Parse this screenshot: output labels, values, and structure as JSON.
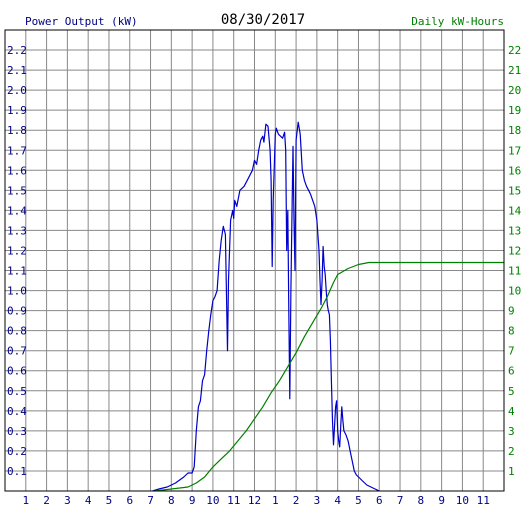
{
  "chart_data": {
    "type": "line",
    "date": "08/30/2017",
    "left_axis_title": "Power Output (kW)",
    "right_axis_title": "Daily kW-Hours",
    "x_tick_labels": [
      "1",
      "2",
      "3",
      "4",
      "5",
      "6",
      "7",
      "8",
      "9",
      "10",
      "11",
      "12",
      "1",
      "2",
      "3",
      "4",
      "5",
      "6",
      "7",
      "8",
      "9",
      "10",
      "11"
    ],
    "left_ticks": [
      "0.1",
      "0.2",
      "0.3",
      "0.4",
      "0.5",
      "0.6",
      "0.7",
      "0.8",
      "0.9",
      "1.0",
      "1.1",
      "1.2",
      "1.3",
      "1.4",
      "1.5",
      "1.6",
      "1.7",
      "1.8",
      "1.9",
      "2.0",
      "2.1",
      "2.2"
    ],
    "right_ticks": [
      "1",
      "2",
      "3",
      "4",
      "5",
      "6",
      "7",
      "8",
      "9",
      "10",
      "11",
      "12",
      "13",
      "14",
      "15",
      "16",
      "17",
      "18",
      "19",
      "20",
      "21",
      "22"
    ],
    "ylim_left": [
      0,
      2.3
    ],
    "ylim_right": [
      0,
      23
    ],
    "xlim_hours": [
      0,
      24
    ],
    "grid": true,
    "colors": {
      "power": "#0000cc",
      "energy": "#008000",
      "left_axis": "#000080",
      "right_axis": "#008000",
      "grid": "#888888"
    },
    "series": [
      {
        "axis": "left",
        "color": "#0000cc",
        "points": [
          [
            7.1,
            0.0
          ],
          [
            7.4,
            0.01
          ],
          [
            7.8,
            0.02
          ],
          [
            8.2,
            0.04
          ],
          [
            8.6,
            0.07
          ],
          [
            8.8,
            0.09
          ],
          [
            9.0,
            0.09
          ],
          [
            9.1,
            0.12
          ],
          [
            9.2,
            0.3
          ],
          [
            9.3,
            0.42
          ],
          [
            9.4,
            0.45
          ],
          [
            9.5,
            0.55
          ],
          [
            9.6,
            0.58
          ],
          [
            9.7,
            0.7
          ],
          [
            9.8,
            0.8
          ],
          [
            9.9,
            0.88
          ],
          [
            10.0,
            0.95
          ],
          [
            10.1,
            0.97
          ],
          [
            10.2,
            1.0
          ],
          [
            10.3,
            1.15
          ],
          [
            10.4,
            1.25
          ],
          [
            10.5,
            1.32
          ],
          [
            10.6,
            1.28
          ],
          [
            10.65,
            1.0
          ],
          [
            10.7,
            0.7
          ],
          [
            10.75,
            1.05
          ],
          [
            10.85,
            1.35
          ],
          [
            10.95,
            1.4
          ],
          [
            11.0,
            1.36
          ],
          [
            11.05,
            1.45
          ],
          [
            11.15,
            1.42
          ],
          [
            11.3,
            1.5
          ],
          [
            11.5,
            1.52
          ],
          [
            11.7,
            1.56
          ],
          [
            11.9,
            1.6
          ],
          [
            12.0,
            1.65
          ],
          [
            12.1,
            1.63
          ],
          [
            12.2,
            1.7
          ],
          [
            12.3,
            1.75
          ],
          [
            12.4,
            1.77
          ],
          [
            12.45,
            1.74
          ],
          [
            12.55,
            1.83
          ],
          [
            12.65,
            1.82
          ],
          [
            12.75,
            1.7
          ],
          [
            12.8,
            1.55
          ],
          [
            12.85,
            1.12
          ],
          [
            12.9,
            1.45
          ],
          [
            13.0,
            1.78
          ],
          [
            13.05,
            1.81
          ],
          [
            13.15,
            1.78
          ],
          [
            13.25,
            1.77
          ],
          [
            13.35,
            1.76
          ],
          [
            13.45,
            1.79
          ],
          [
            13.5,
            1.7
          ],
          [
            13.55,
            1.2
          ],
          [
            13.6,
            1.4
          ],
          [
            13.65,
            0.9
          ],
          [
            13.7,
            0.46
          ],
          [
            13.75,
            1.0
          ],
          [
            13.8,
            1.35
          ],
          [
            13.85,
            1.72
          ],
          [
            13.9,
            1.35
          ],
          [
            13.95,
            1.1
          ],
          [
            14.0,
            1.75
          ],
          [
            14.1,
            1.84
          ],
          [
            14.2,
            1.78
          ],
          [
            14.3,
            1.6
          ],
          [
            14.4,
            1.55
          ],
          [
            14.5,
            1.52
          ],
          [
            14.6,
            1.5
          ],
          [
            14.7,
            1.48
          ],
          [
            14.8,
            1.45
          ],
          [
            14.9,
            1.42
          ],
          [
            15.0,
            1.35
          ],
          [
            15.1,
            1.2
          ],
          [
            15.15,
            1.05
          ],
          [
            15.2,
            0.93
          ],
          [
            15.25,
            1.05
          ],
          [
            15.3,
            1.22
          ],
          [
            15.35,
            1.12
          ],
          [
            15.4,
            1.08
          ],
          [
            15.45,
            1.0
          ],
          [
            15.5,
            0.93
          ],
          [
            15.55,
            0.9
          ],
          [
            15.6,
            0.88
          ],
          [
            15.65,
            0.75
          ],
          [
            15.7,
            0.55
          ],
          [
            15.75,
            0.35
          ],
          [
            15.8,
            0.23
          ],
          [
            15.85,
            0.32
          ],
          [
            15.9,
            0.42
          ],
          [
            15.95,
            0.45
          ],
          [
            16.0,
            0.3
          ],
          [
            16.05,
            0.25
          ],
          [
            16.1,
            0.22
          ],
          [
            16.15,
            0.33
          ],
          [
            16.2,
            0.42
          ],
          [
            16.25,
            0.35
          ],
          [
            16.3,
            0.3
          ],
          [
            16.4,
            0.28
          ],
          [
            16.5,
            0.25
          ],
          [
            16.6,
            0.2
          ],
          [
            16.7,
            0.15
          ],
          [
            16.8,
            0.1
          ],
          [
            16.9,
            0.08
          ],
          [
            17.0,
            0.07
          ],
          [
            17.2,
            0.05
          ],
          [
            17.4,
            0.03
          ],
          [
            17.6,
            0.02
          ],
          [
            17.8,
            0.01
          ],
          [
            18.0,
            0.0
          ]
        ]
      },
      {
        "axis": "right",
        "color": "#008000",
        "points": [
          [
            7.2,
            0.0
          ],
          [
            8.0,
            0.1
          ],
          [
            8.8,
            0.2
          ],
          [
            9.2,
            0.4
          ],
          [
            9.6,
            0.7
          ],
          [
            10.0,
            1.2
          ],
          [
            10.4,
            1.6
          ],
          [
            10.8,
            2.0
          ],
          [
            11.2,
            2.5
          ],
          [
            11.6,
            3.0
          ],
          [
            12.0,
            3.6
          ],
          [
            12.4,
            4.2
          ],
          [
            12.8,
            4.9
          ],
          [
            13.2,
            5.5
          ],
          [
            13.6,
            6.2
          ],
          [
            14.0,
            6.9
          ],
          [
            14.4,
            7.7
          ],
          [
            14.8,
            8.4
          ],
          [
            15.2,
            9.1
          ],
          [
            15.5,
            9.7
          ],
          [
            15.8,
            10.4
          ],
          [
            16.0,
            10.8
          ],
          [
            16.5,
            11.1
          ],
          [
            17.0,
            11.3
          ],
          [
            17.5,
            11.4
          ],
          [
            18.0,
            11.4
          ],
          [
            24.0,
            11.4
          ]
        ]
      }
    ]
  }
}
